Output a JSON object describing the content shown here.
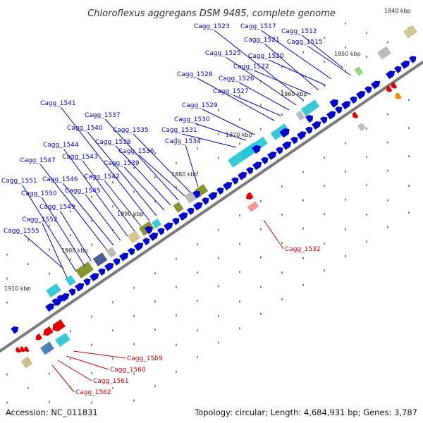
{
  "title": "Chloroflexus aggregans DSM 9485, complete genome",
  "accession": "Accession: NC_011831",
  "summary": "Topology: circular; Length: 4,684,931 bp; Genes: 3,787",
  "colors": {
    "backbone": "#7a7a7a",
    "forward_gene": "#0000cc",
    "reverse_gene": "#e00000",
    "forward_label": "#0000cc",
    "reverse_label": "#cc0000",
    "tick": "#1a7a1a",
    "cyan_feature": "#22c4d4",
    "olive_feature": "#7a8a1a",
    "khaki_feature": "#cfc08a",
    "gray_feature": "#b4b4b4",
    "orange_feature": "#f08c00"
  },
  "scale_labels": [
    "1840 kbp",
    "1850 kbp",
    "1860 kbp",
    "1870 kbp",
    "1880 kbp",
    "1890 kbp",
    "1900 kbp",
    "1910 kbp"
  ],
  "forward_genes": [
    "Cagg_1512",
    "Cagg_1515",
    "Cagg_1517",
    "Cagg_1520",
    "Cagg_1521",
    "Cagg_1522",
    "Cagg_1523",
    "Cagg_1525",
    "Cagg_1526",
    "Cagg_1527",
    "Cagg_1528",
    "Cagg_1529",
    "Cagg_1530",
    "Cagg_1531",
    "Cagg_1534",
    "Cagg_1535",
    "Cagg_1536",
    "Cagg_1537",
    "Cagg_1538",
    "Cagg_1539",
    "Cagg_1540",
    "Cagg_1541",
    "Cagg_1542",
    "Cagg_1543",
    "Cagg_1544",
    "Cagg_1545",
    "Cagg_1546",
    "Cagg_1547",
    "Cagg_1549",
    "Cagg_1550",
    "Cagg_1551",
    "Cagg_1552",
    "Cagg_1555"
  ],
  "reverse_genes": [
    "Cagg_1532",
    "Cagg_1559",
    "Cagg_1560",
    "Cagg_1561",
    "Cagg_1562"
  ]
}
